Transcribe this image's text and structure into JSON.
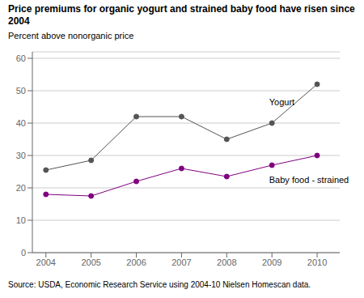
{
  "chart_data": {
    "type": "line",
    "title": "Price premiums for organic yogurt and strained baby food have risen since 2004",
    "ylabel": "Percent above nonorganic price",
    "source": "Source: USDA, Economic Research Service using 2004-10 Nielsen Homescan data.",
    "x": [
      2004,
      2005,
      2006,
      2007,
      2008,
      2009,
      2010
    ],
    "series": [
      {
        "name": "Yogurt",
        "color": "#555555",
        "values": [
          25.5,
          28.5,
          42,
          42,
          35,
          40,
          52
        ]
      },
      {
        "name": "Baby food - strained",
        "color": "#800080",
        "values": [
          18,
          17.5,
          22,
          26,
          23.5,
          27,
          30
        ]
      }
    ],
    "xlim": [
      2003.7,
      2010.5
    ],
    "xticks": [
      2004,
      2005,
      2006,
      2007,
      2008,
      2009,
      2010
    ],
    "ylim": [
      0,
      62
    ],
    "yticks": [
      0,
      10,
      20,
      30,
      40,
      50,
      60
    ],
    "grid": true,
    "marker": "circle",
    "annotations": [
      {
        "text": "Yogurt",
        "x": 2008.85,
        "y": 46.5
      },
      {
        "text": "Baby food - strained",
        "x": 2008.85,
        "y": 22.5
      }
    ]
  }
}
